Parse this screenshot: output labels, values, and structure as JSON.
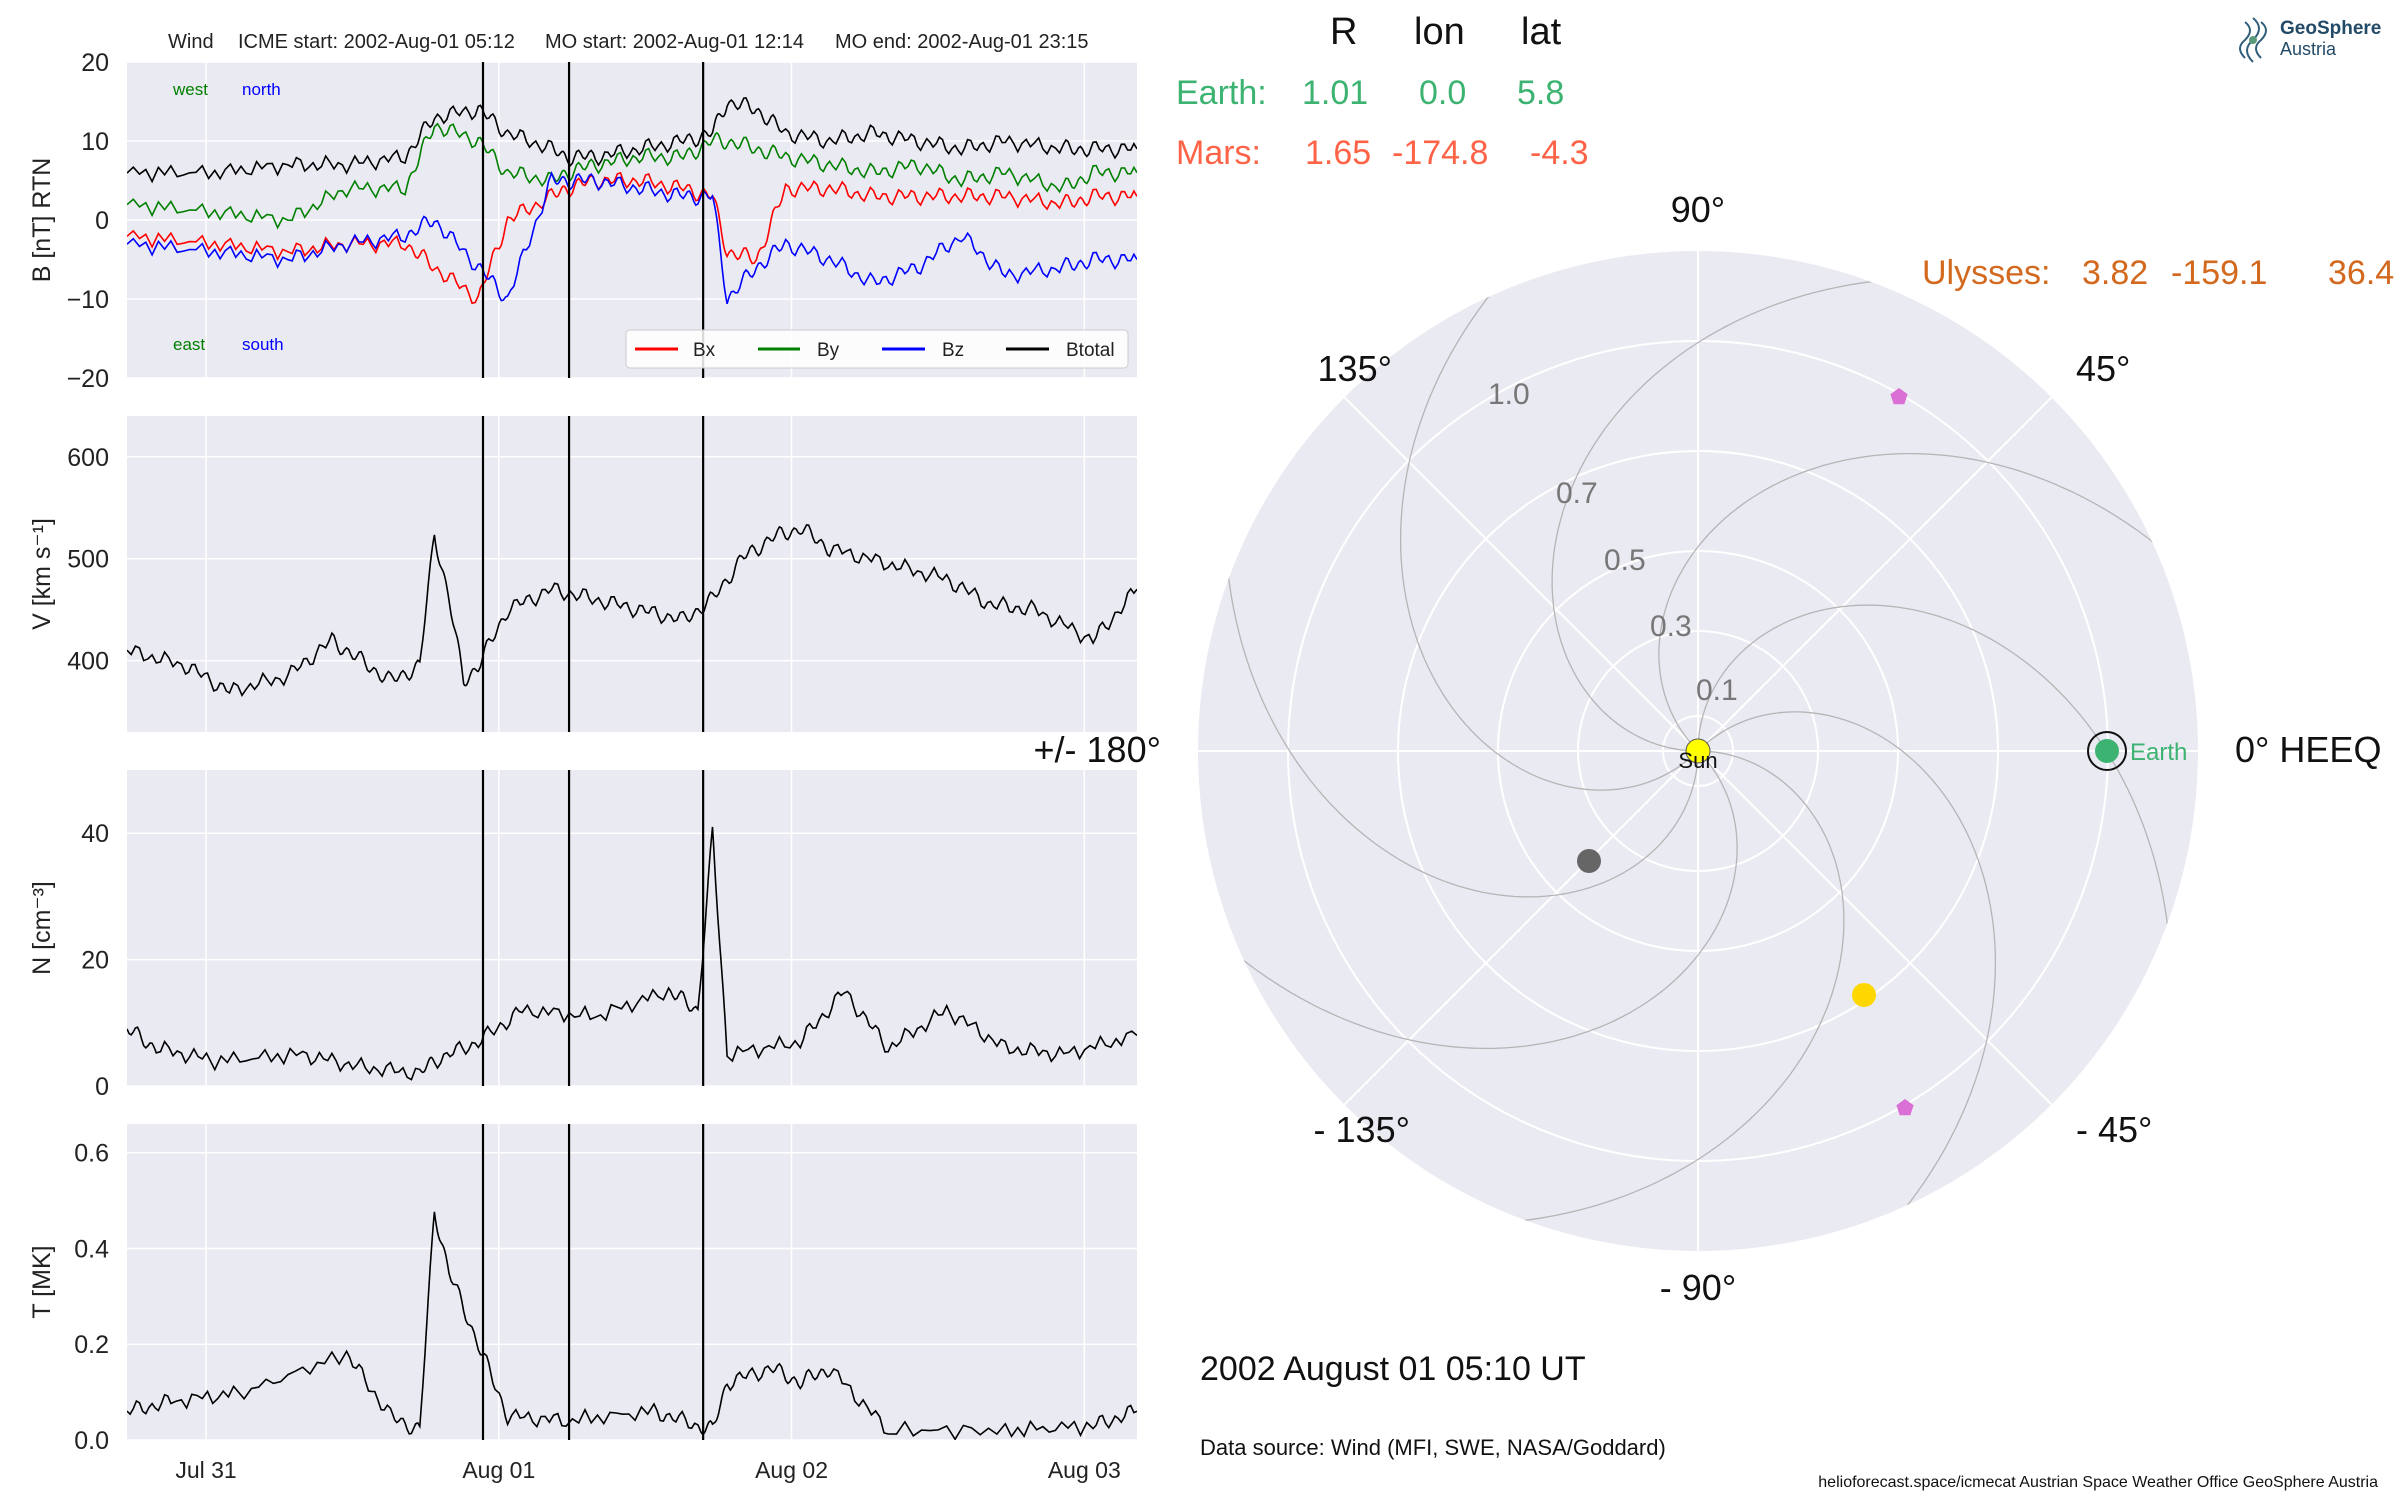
{
  "header": {
    "spacecraft": "Wind",
    "icme_start": "ICME start: 2002-Aug-01 05:12",
    "mo_start": "MO start: 2002-Aug-01 12:14",
    "mo_end": "MO end: 2002-Aug-01 23:15"
  },
  "logo": {
    "line1": "GeoSphere",
    "line2": "Austria"
  },
  "polar_table": {
    "col_r": "R",
    "col_lon": "lon",
    "col_lat": "lat",
    "earth_label": "Earth:",
    "earth_r": "1.01",
    "earth_lon": "0.0",
    "earth_lat": "5.8",
    "mars_label": "Mars:",
    "mars_r": "1.65",
    "mars_lon": "-174.8",
    "mars_lat": "-4.3",
    "ulysses_label": "Ulysses:",
    "ulysses_r": "3.82",
    "ulysses_lon": "-159.1",
    "ulysses_lat": "36.4"
  },
  "polar": {
    "angle_labels": {
      "a0": "0° HEEQ",
      "a45": "45°",
      "a90": "90°",
      "a135": "135°",
      "a180": "+/- 180°",
      "am135": "- 135°",
      "am90": "- 90°",
      "am45": "- 45°"
    },
    "radial_labels": [
      "0.1",
      "0.3",
      "0.5",
      "0.7",
      "1.0"
    ],
    "sun_label": "Sun",
    "earth_label": "Earth",
    "colors": {
      "earth": "#3cb371",
      "mars": "#ff6347",
      "ulysses": "#d2691e",
      "sun": "#ffff00",
      "probe_gray": "#666666",
      "probe_gold": "#ffd700",
      "marker_pink": "#da70d6"
    }
  },
  "date_label": "2002 August 01  05:10 UT",
  "data_source": "Data source: Wind (MFI, SWE, NASA/Goddard)",
  "footer": "helioforecast.space/icmecat   Austrian Space Weather Office   GeoSphere Austria",
  "chart_data": [
    {
      "type": "line",
      "ylabel": "B [nT] RTN",
      "ylim": [
        -20,
        20
      ],
      "yticks": [
        "20",
        "10",
        "0",
        "−10",
        "−20"
      ],
      "corner_labels": {
        "west": "west",
        "north": "north",
        "east": "east",
        "south": "south"
      },
      "legend": {
        "placement": "lower-right",
        "bx": "Bx",
        "by": "By",
        "bz": "Bz",
        "bt": "Btotal"
      },
      "colors": {
        "bx": "#ff0000",
        "by": "#008000",
        "bz": "#0000ff",
        "bt": "#000000"
      },
      "x": [
        0,
        0.3,
        0.55,
        0.75,
        0.95,
        1.05,
        1.2,
        1.3,
        1.45,
        1.5,
        1.6,
        1.75,
        1.9,
        2.0,
        2.05,
        2.15,
        2.25,
        2.4,
        2.55,
        2.7,
        2.85,
        3.0,
        3.2,
        3.3,
        3.45
      ],
      "series": [
        {
          "key": "bt",
          "values": [
            6,
            6,
            7,
            7,
            8,
            13,
            14,
            11,
            9,
            8,
            8,
            9,
            10,
            11,
            15,
            14,
            11,
            10,
            11,
            10,
            9,
            10,
            9,
            9,
            9
          ]
        },
        {
          "key": "by",
          "values": [
            2,
            1,
            0,
            4,
            4,
            12,
            10,
            6,
            5,
            6,
            7,
            8,
            8,
            10,
            10,
            9,
            8,
            7,
            6,
            7,
            5,
            6,
            4,
            6,
            6
          ]
        },
        {
          "key": "bx",
          "values": [
            -2,
            -3,
            -4,
            -3,
            -3,
            -6,
            -10,
            0,
            3,
            4,
            5,
            5,
            4,
            3,
            -4,
            -5,
            4,
            4,
            3,
            3,
            3,
            3,
            2,
            3,
            3
          ]
        },
        {
          "key": "bz",
          "values": [
            -3,
            -4,
            -5,
            -3,
            -2,
            0,
            -6,
            -10,
            5,
            5,
            5,
            4,
            3,
            3,
            -10,
            -6,
            -3,
            -5,
            -8,
            -6,
            -2,
            -7,
            -6,
            -5,
            -5
          ]
        }
      ]
    },
    {
      "type": "line",
      "ylabel": "V [km s⁻¹]",
      "ylim": [
        330,
        640
      ],
      "yticks": [
        "600",
        "500",
        "400"
      ],
      "x": [
        0,
        0.2,
        0.35,
        0.55,
        0.7,
        0.8,
        0.9,
        1.0,
        1.05,
        1.1,
        1.15,
        1.2,
        1.3,
        1.45,
        1.6,
        1.75,
        1.9,
        2.0,
        2.1,
        2.2,
        2.3,
        2.4,
        2.6,
        2.8,
        2.95,
        3.1,
        3.3,
        3.45
      ],
      "series": [
        {
          "key": "v",
          "values": [
            410,
            395,
            370,
            385,
            420,
            400,
            380,
            395,
            525,
            460,
            380,
            395,
            450,
            470,
            460,
            450,
            440,
            460,
            500,
            520,
            530,
            510,
            495,
            480,
            455,
            450,
            420,
            470
          ]
        }
      ]
    },
    {
      "type": "line",
      "ylabel": "N [cm⁻³]",
      "ylim": [
        0,
        50
      ],
      "yticks": [
        "40",
        "20",
        "0"
      ],
      "x": [
        0,
        0.1,
        0.3,
        0.6,
        0.8,
        1.0,
        1.05,
        1.2,
        1.35,
        1.6,
        1.85,
        1.95,
        2.0,
        2.05,
        2.3,
        2.45,
        2.6,
        2.8,
        3.0,
        3.2,
        3.45
      ],
      "series": [
        {
          "key": "n",
          "values": [
            9,
            6,
            4,
            5,
            3,
            2,
            4,
            7,
            12,
            11,
            15,
            12,
            40,
            5,
            7,
            15,
            6,
            12,
            6,
            5,
            8
          ]
        }
      ]
    },
    {
      "type": "line",
      "ylabel": "T [MK]",
      "ylim": [
        0,
        0.66
      ],
      "yticks": [
        "0.6",
        "0.4",
        "0.2",
        "0.0"
      ],
      "xticks": [
        "Jul 31",
        "Aug 01",
        "Aug 02",
        "Aug 03"
      ],
      "x": [
        0,
        0.15,
        0.4,
        0.75,
        0.9,
        1.0,
        1.05,
        1.1,
        1.2,
        1.3,
        1.5,
        1.8,
        1.95,
        2.0,
        2.05,
        2.2,
        2.3,
        2.4,
        2.6,
        3.0,
        3.3,
        3.45
      ],
      "series": [
        {
          "key": "t",
          "values": [
            0.06,
            0.08,
            0.1,
            0.18,
            0.05,
            0.02,
            0.48,
            0.35,
            0.2,
            0.05,
            0.04,
            0.06,
            0.03,
            0.02,
            0.12,
            0.15,
            0.12,
            0.15,
            0.02,
            0.02,
            0.03,
            0.06
          ]
        }
      ]
    }
  ]
}
